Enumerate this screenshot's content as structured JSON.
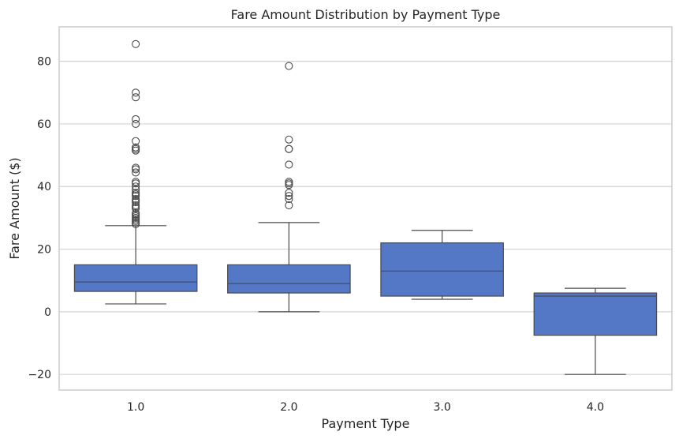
{
  "chart_data": {
    "type": "box",
    "title": "Fare Amount Distribution by Payment Type",
    "xlabel": "Payment Type",
    "ylabel": "Fare Amount ($)",
    "ylim": [
      -25,
      91
    ],
    "yticks": [
      -20,
      0,
      20,
      40,
      60,
      80
    ],
    "ytick_labels": [
      "−20",
      "0",
      "20",
      "40",
      "60",
      "80"
    ],
    "grid": true,
    "colors": {
      "box_fill": "#5578C6",
      "line": "#4A4A4A",
      "grid": "#D3D3D3",
      "frame": "#CCCCCC"
    },
    "categories": [
      "1.0",
      "2.0",
      "3.0",
      "4.0"
    ],
    "boxes": [
      {
        "category": "1.0",
        "whisker_low": 2.5,
        "q1": 6.5,
        "median": 9.5,
        "q3": 15.0,
        "whisker_high": 27.5,
        "outliers": [
          28.0,
          28.5,
          29.0,
          29.5,
          30.0,
          30.5,
          31.0,
          31.5,
          33.0,
          33.5,
          34.0,
          35.0,
          35.5,
          36.0,
          37.0,
          37.5,
          38.0,
          39.0,
          40.0,
          41.0,
          41.5,
          44.5,
          45.5,
          46.0,
          51.5,
          52.0,
          52.5,
          54.5,
          60.0,
          61.5,
          68.5,
          70.0,
          85.5
        ]
      },
      {
        "category": "2.0",
        "whisker_low": 0.0,
        "q1": 6.0,
        "median": 9.0,
        "q3": 15.0,
        "whisker_high": 28.5,
        "outliers": [
          34.0,
          36.0,
          37.0,
          38.0,
          40.5,
          41.0,
          41.5,
          47.0,
          52.0,
          52.0,
          55.0,
          78.5
        ]
      },
      {
        "category": "3.0",
        "whisker_low": 4.0,
        "q1": 5.0,
        "median": 13.0,
        "q3": 22.0,
        "whisker_high": 26.0,
        "outliers": []
      },
      {
        "category": "4.0",
        "whisker_low": -20.0,
        "q1": -7.5,
        "median": 5.0,
        "q3": 6.0,
        "whisker_high": 7.5,
        "outliers": []
      }
    ]
  }
}
